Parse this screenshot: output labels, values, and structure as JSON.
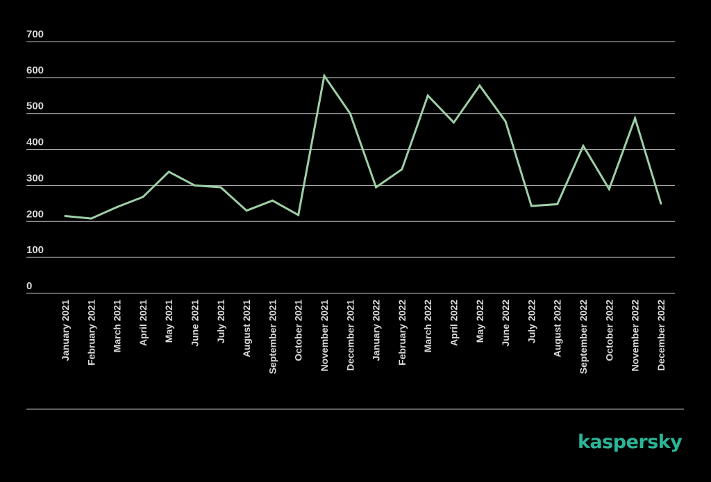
{
  "colors": {
    "background": "#000000",
    "line": "#9ecfa7",
    "grid": "#bfbfbf",
    "tick_text": "#d9d9d9",
    "brand": "#2bb598"
  },
  "brand": {
    "logo_text": "kaspersky"
  },
  "chart_data": {
    "type": "line",
    "title": "",
    "xlabel": "",
    "ylabel": "",
    "grid": true,
    "legend": "none",
    "ylim": [
      0,
      700
    ],
    "yticks": [
      0,
      100,
      200,
      300,
      400,
      500,
      600,
      700
    ],
    "categories": [
      "January 2021",
      "February 2021",
      "March 2021",
      "April 2021",
      "May 2021",
      "June 2021",
      "July 2021",
      "August 2021",
      "September 2021",
      "October 2021",
      "November 2021",
      "December 2021",
      "January 2022",
      "February 2022",
      "March 2022",
      "April 2022",
      "May 2022",
      "June 2022",
      "July 2022",
      "August 2022",
      "September 2022",
      "October 2022",
      "November 2022",
      "December 2022"
    ],
    "series": [
      {
        "values": [
          215,
          208,
          240,
          268,
          338,
          300,
          295,
          230,
          258,
          218,
          605,
          500,
          295,
          345,
          550,
          475,
          578,
          478,
          243,
          248,
          410,
          290,
          487,
          250
        ]
      }
    ]
  }
}
